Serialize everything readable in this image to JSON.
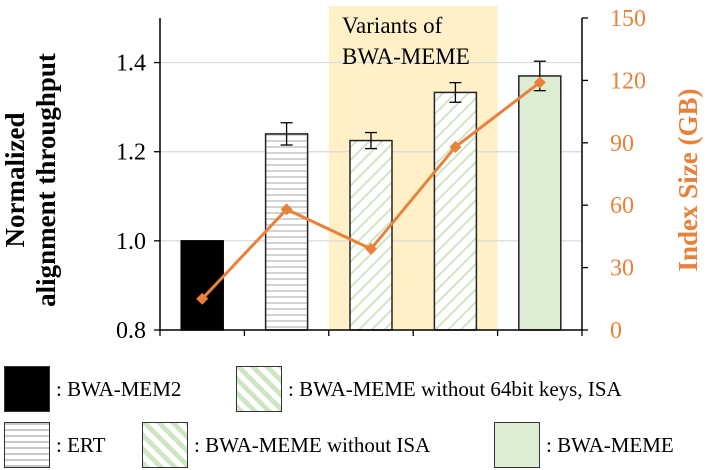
{
  "chart_data": {
    "type": "bar",
    "categories": [
      "BWA-MEM2",
      "ERT",
      "BWA-MEME without 64bit keys, ISA",
      "BWA-MEME without ISA",
      "BWA-MEME"
    ],
    "series": [
      {
        "name": "Normalized alignment throughput",
        "type": "bar",
        "axis": "left",
        "values": [
          1.0,
          1.24,
          1.225,
          1.333,
          1.37
        ],
        "errors": [
          0,
          0.025,
          0.018,
          0.022,
          0.033
        ]
      },
      {
        "name": "Index Size (GB)",
        "type": "line",
        "axis": "right",
        "values": [
          15,
          58,
          39,
          88,
          119
        ]
      }
    ],
    "ylabel": "Normalized alignment throughput",
    "y2label": "Index Size (GB)",
    "ylim": [
      0.8,
      1.5
    ],
    "y2lim": [
      0,
      150
    ],
    "yticks": [
      "0.8",
      "1.0",
      "1.2",
      "1.4"
    ],
    "y2ticks": [
      "0",
      "30",
      "60",
      "90",
      "120",
      "150"
    ],
    "annotation": {
      "text_line1": "Variants of",
      "text_line2": "BWA-MEME",
      "from_index": 2,
      "to_index": 3
    },
    "legend_placement": "bottom",
    "colors": {
      "line": "#e8823a",
      "highlight": "#fff0c8",
      "grid": "#d9d9d9",
      "green": "#dcedd3",
      "hatch_green": "#cfe6c3"
    }
  },
  "legend": {
    "bwa_mem2": ": BWA-MEM2",
    "no64": ": BWA-MEME without 64bit keys, ISA",
    "ert": ": ERT",
    "noisa": ": BWA-MEME without ISA",
    "meme": ": BWA-MEME"
  }
}
